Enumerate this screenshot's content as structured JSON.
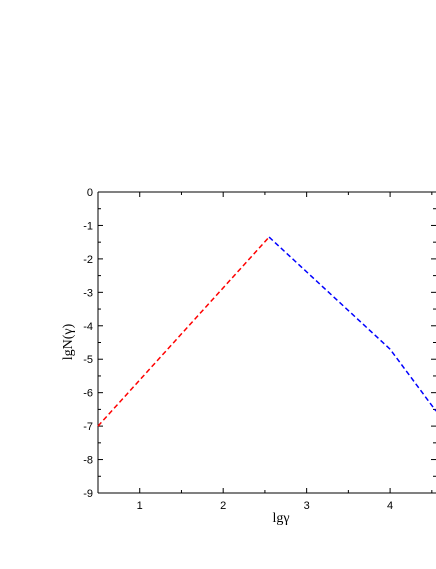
{
  "chart_data": {
    "type": "line",
    "title": "",
    "xlabel": "lgγ",
    "ylabel": "lgN(γ)",
    "xlim": [
      0.5,
      4.55
    ],
    "ylim": [
      -9,
      0
    ],
    "x_ticks": [
      1,
      2,
      3,
      4
    ],
    "x_tick_labels": [
      "1",
      "2",
      "3",
      "4"
    ],
    "y_ticks": [
      0,
      -1,
      -2,
      -3,
      -4,
      -5,
      -6,
      -7,
      -8,
      -9
    ],
    "y_tick_labels": [
      "0",
      "-1",
      "-2",
      "-3",
      "-4",
      "-5",
      "-6",
      "-7",
      "-8",
      "-9"
    ],
    "grid": false,
    "legend": "none",
    "series": [
      {
        "color": "#ff0000",
        "line_style": "dashed",
        "x": [
          0.5,
          2.55
        ],
        "y": [
          -7.0,
          -1.35
        ]
      },
      {
        "color": "#0000ff",
        "line_style": "dashed",
        "x": [
          2.55,
          4.0,
          4.55
        ],
        "y": [
          -1.35,
          -4.7,
          -6.55
        ]
      }
    ]
  }
}
